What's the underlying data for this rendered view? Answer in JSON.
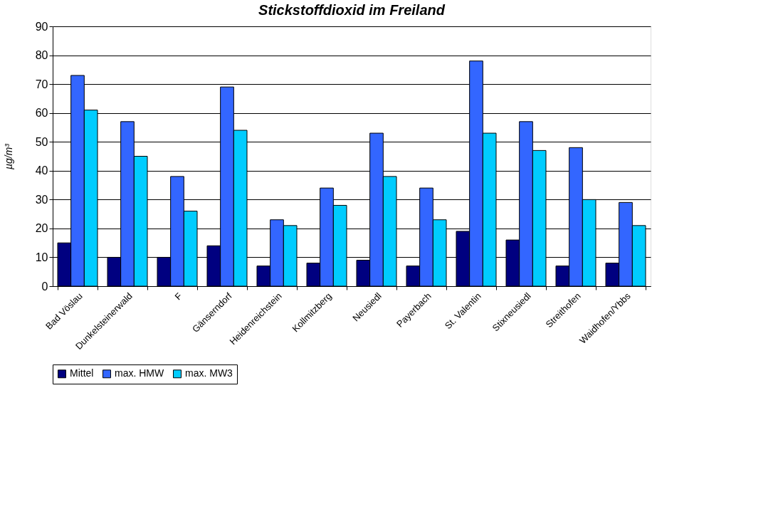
{
  "chart_data": {
    "type": "bar",
    "title": "Stickstoffdioxid im Freiland",
    "ylabel": "µg/m³",
    "categories": [
      "Bad Vöslau",
      "Dunkelsteinerwald",
      "F",
      "Gänserndorf",
      "Heidenreichstein",
      "Kollmitzberg",
      "Neusiedl",
      "Payerbach",
      "St. Valentin",
      "Stixneusiedl",
      "Streithofen",
      "Waidhofen/Ybbs"
    ],
    "series": [
      {
        "name": "Mittel",
        "color": "#000080",
        "values": [
          15,
          10,
          10,
          14,
          7,
          8,
          9,
          7,
          19,
          16,
          7,
          8
        ]
      },
      {
        "name": "max. HMW",
        "color": "#3366ff",
        "values": [
          73,
          57,
          38,
          69,
          23,
          34,
          53,
          34,
          78,
          57,
          48,
          29
        ]
      },
      {
        "name": "max. MW3",
        "color": "#00ccff",
        "values": [
          61,
          45,
          26,
          54,
          21,
          28,
          38,
          23,
          53,
          47,
          30,
          21
        ]
      }
    ],
    "ylim": [
      0,
      90
    ],
    "yticks": [
      0,
      10,
      20,
      30,
      40,
      50,
      60,
      70,
      80,
      90
    ],
    "grid": "y",
    "legend": "bottom"
  }
}
